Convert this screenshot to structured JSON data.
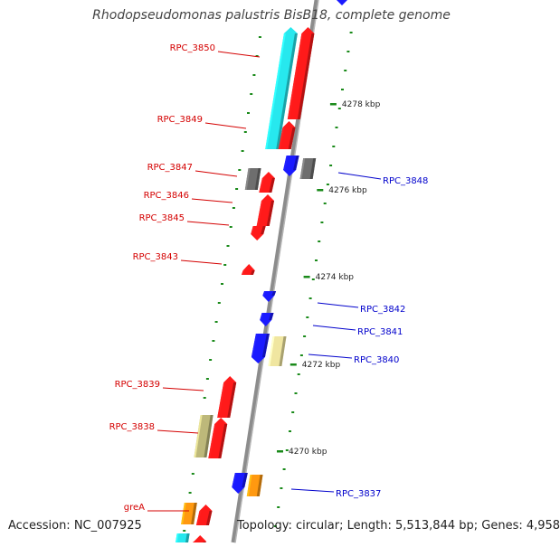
{
  "title": "Rhodopseudomonas palustris BisB18, complete genome",
  "footer": {
    "accession": "Accession: NC_007925",
    "topology": "Topology: circular; Length: 5,513,844 bp; Genes: 4,958"
  },
  "colors": {
    "backbone": "#8c8c8c",
    "red_gene": "#ff1a1a",
    "blue_gene": "#1a1aff",
    "cyan_gene": "#27e8ee",
    "gray_gene": "#6e6e6e",
    "olive_gene": "#bdb87a",
    "yellow_gene": "#f0e6a0",
    "orange_gene": "#ff9910",
    "tick": "#1a8a1a",
    "label_red": "#d40000",
    "label_blue": "#0000cc"
  },
  "scale": {
    "positions_kbp": [
      4278,
      4276,
      4274,
      4272,
      4270
    ],
    "labels": [
      "4278 kbp",
      "4276 kbp",
      "4274 kbp",
      "4272 kbp",
      "4270 kbp"
    ]
  },
  "left_labels": [
    "RPC_3850",
    "RPC_3849",
    "RPC_3847",
    "RPC_3846",
    "RPC_3845",
    "RPC_3843",
    "RPC_3839",
    "RPC_3838",
    "greA"
  ],
  "right_labels": [
    "RPC_3848",
    "RPC_3842",
    "RPC_3841",
    "RPC_3840",
    "RPC_3837"
  ]
}
